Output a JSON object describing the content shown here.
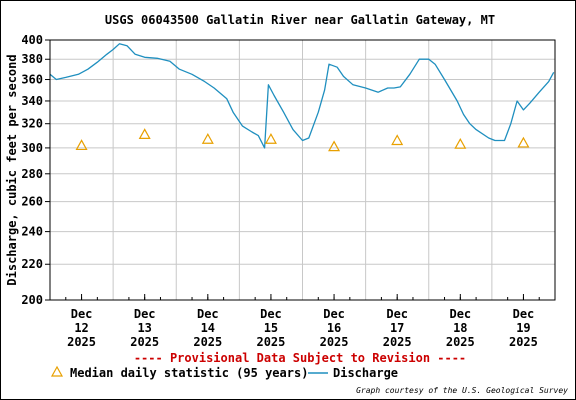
{
  "chart_data": {
    "type": "line",
    "title": "USGS 06043500 Gallatin River near Gallatin Gateway, MT",
    "ylabel": "Discharge, cubic feet per second",
    "xlabel": "",
    "y_scale": "log",
    "ylim": [
      200,
      400
    ],
    "y_ticks": [
      200,
      220,
      240,
      260,
      280,
      300,
      320,
      340,
      360,
      380,
      400
    ],
    "x_range_days": [
      11.5,
      19.5
    ],
    "x_ticks": [
      {
        "day": 12,
        "month": "Dec",
        "daynum": "12",
        "year": "2025"
      },
      {
        "day": 13,
        "month": "Dec",
        "daynum": "13",
        "year": "2025"
      },
      {
        "day": 14,
        "month": "Dec",
        "daynum": "14",
        "year": "2025"
      },
      {
        "day": 15,
        "month": "Dec",
        "daynum": "15",
        "year": "2025"
      },
      {
        "day": 16,
        "month": "Dec",
        "daynum": "16",
        "year": "2025"
      },
      {
        "day": 17,
        "month": "Dec",
        "daynum": "17",
        "year": "2025"
      },
      {
        "day": 18,
        "month": "Dec",
        "daynum": "18",
        "year": "2025"
      },
      {
        "day": 19,
        "month": "Dec",
        "daynum": "19",
        "year": "2025"
      }
    ],
    "grid": true,
    "series": [
      {
        "name": "Discharge",
        "color": "#1f8fbf",
        "points": [
          [
            11.5,
            365
          ],
          [
            11.6,
            360
          ],
          [
            11.75,
            362
          ],
          [
            11.95,
            365
          ],
          [
            12.1,
            370
          ],
          [
            12.25,
            377
          ],
          [
            12.4,
            385
          ],
          [
            12.5,
            390
          ],
          [
            12.6,
            396
          ],
          [
            12.72,
            394
          ],
          [
            12.85,
            385
          ],
          [
            13.0,
            382
          ],
          [
            13.2,
            381
          ],
          [
            13.4,
            378
          ],
          [
            13.55,
            370
          ],
          [
            13.75,
            365
          ],
          [
            13.95,
            358
          ],
          [
            14.1,
            352
          ],
          [
            14.3,
            342
          ],
          [
            14.4,
            330
          ],
          [
            14.55,
            318
          ],
          [
            14.7,
            313
          ],
          [
            14.8,
            310
          ],
          [
            14.9,
            300
          ],
          [
            14.96,
            355
          ],
          [
            15.05,
            345
          ],
          [
            15.2,
            330
          ],
          [
            15.35,
            315
          ],
          [
            15.5,
            306
          ],
          [
            15.6,
            308
          ],
          [
            15.75,
            330
          ],
          [
            15.85,
            350
          ],
          [
            15.92,
            375
          ],
          [
            16.05,
            372
          ],
          [
            16.15,
            363
          ],
          [
            16.3,
            355
          ],
          [
            16.5,
            352
          ],
          [
            16.7,
            348
          ],
          [
            16.85,
            352
          ],
          [
            16.95,
            352
          ],
          [
            17.05,
            353
          ],
          [
            17.2,
            365
          ],
          [
            17.35,
            380
          ],
          [
            17.5,
            380
          ],
          [
            17.6,
            375
          ],
          [
            17.75,
            360
          ],
          [
            17.95,
            340
          ],
          [
            18.05,
            328
          ],
          [
            18.15,
            320
          ],
          [
            18.25,
            315
          ],
          [
            18.45,
            308
          ],
          [
            18.55,
            306
          ],
          [
            18.7,
            306
          ],
          [
            18.8,
            320
          ],
          [
            18.9,
            340
          ],
          [
            19.0,
            332
          ],
          [
            19.1,
            338
          ],
          [
            19.25,
            348
          ],
          [
            19.4,
            358
          ],
          [
            19.48,
            367
          ]
        ]
      },
      {
        "name": "Median daily statistic (95 years)",
        "color": "#e8a000",
        "marker": "triangle",
        "points": [
          [
            12,
            302
          ],
          [
            13,
            311
          ],
          [
            14,
            307
          ],
          [
            15,
            307
          ],
          [
            16,
            301
          ],
          [
            17,
            306
          ],
          [
            18,
            303
          ],
          [
            19,
            304
          ]
        ]
      }
    ],
    "legend": {
      "placement": "bottom",
      "median_label": "Median daily statistic (95 years)",
      "discharge_label": "Discharge"
    },
    "notice": "---- Provisional Data Subject to Revision ----",
    "credit": "Graph courtesy of the U.S. Geological Survey"
  },
  "colors": {
    "discharge": "#1f8fbf",
    "median": "#e8a000",
    "notice": "#cc0000",
    "grid": "#c8c8c8"
  }
}
